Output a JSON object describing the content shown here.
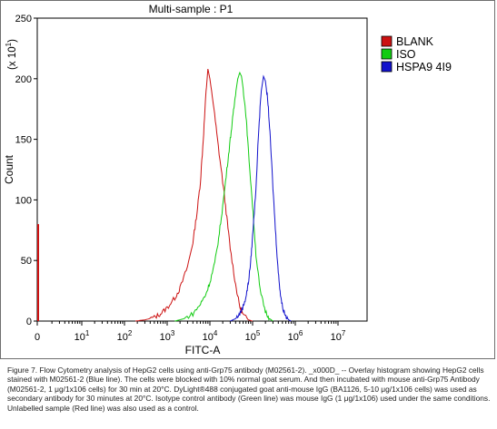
{
  "chart_data": {
    "type": "line",
    "title": "Multi-sample : P1",
    "xlabel": "FITC-A",
    "ylabel": "Count",
    "y_multiplier_label": "(x 10",
    "y_multiplier_exp": "1",
    "x_scale": "log",
    "xlim": [
      0,
      10000000
    ],
    "ylim": [
      0,
      250
    ],
    "x_ticks": [
      {
        "label": "0",
        "exp": ""
      },
      {
        "label": "10",
        "exp": "1"
      },
      {
        "label": "10",
        "exp": "2"
      },
      {
        "label": "10",
        "exp": "3"
      },
      {
        "label": "10",
        "exp": "4"
      },
      {
        "label": "10",
        "exp": "5"
      },
      {
        "label": "10",
        "exp": "6"
      },
      {
        "label": "10",
        "exp": "7"
      }
    ],
    "y_ticks": [
      "0",
      "50",
      "100",
      "150",
      "200",
      "250"
    ],
    "legend_position": "top-right",
    "series": [
      {
        "name": "BLANK",
        "color": "#cc1111",
        "peak_x": 9000,
        "peak_y": 208,
        "points": [
          [
            180,
            0
          ],
          [
            300,
            1
          ],
          [
            500,
            3
          ],
          [
            700,
            6
          ],
          [
            1000,
            11
          ],
          [
            1500,
            19
          ],
          [
            2000,
            27
          ],
          [
            3000,
            45
          ],
          [
            4000,
            65
          ],
          [
            5000,
            90
          ],
          [
            6000,
            115
          ],
          [
            7000,
            150
          ],
          [
            8000,
            185
          ],
          [
            9000,
            208
          ],
          [
            10000,
            200
          ],
          [
            12000,
            180
          ],
          [
            15000,
            150
          ],
          [
            20000,
            115
          ],
          [
            25000,
            85
          ],
          [
            30000,
            60
          ],
          [
            40000,
            30
          ],
          [
            50000,
            12
          ],
          [
            60000,
            5
          ],
          [
            80000,
            1
          ],
          [
            100000,
            0
          ]
        ]
      },
      {
        "name": "ISO",
        "color": "#11cc11",
        "peak_x": 50000,
        "peak_y": 205,
        "points": [
          [
            1500,
            0
          ],
          [
            2500,
            2
          ],
          [
            4000,
            6
          ],
          [
            6000,
            14
          ],
          [
            8000,
            22
          ],
          [
            10000,
            32
          ],
          [
            13000,
            48
          ],
          [
            16000,
            68
          ],
          [
            20000,
            95
          ],
          [
            25000,
            125
          ],
          [
            30000,
            150
          ],
          [
            35000,
            170
          ],
          [
            40000,
            188
          ],
          [
            45000,
            200
          ],
          [
            50000,
            205
          ],
          [
            55000,
            202
          ],
          [
            60000,
            192
          ],
          [
            70000,
            170
          ],
          [
            80000,
            140
          ],
          [
            100000,
            95
          ],
          [
            120000,
            55
          ],
          [
            150000,
            25
          ],
          [
            200000,
            8
          ],
          [
            250000,
            2
          ],
          [
            300000,
            0
          ]
        ]
      },
      {
        "name": "HSPA9 4I9",
        "color": "#1111cc",
        "peak_x": 180000,
        "peak_y": 202,
        "points": [
          [
            30000,
            0
          ],
          [
            40000,
            2
          ],
          [
            50000,
            6
          ],
          [
            60000,
            12
          ],
          [
            70000,
            20
          ],
          [
            80000,
            32
          ],
          [
            90000,
            48
          ],
          [
            100000,
            70
          ],
          [
            120000,
            110
          ],
          [
            140000,
            160
          ],
          [
            160000,
            190
          ],
          [
            180000,
            202
          ],
          [
            200000,
            198
          ],
          [
            230000,
            180
          ],
          [
            260000,
            150
          ],
          [
            300000,
            110
          ],
          [
            350000,
            70
          ],
          [
            400000,
            40
          ],
          [
            450000,
            22
          ],
          [
            500000,
            12
          ],
          [
            600000,
            4
          ],
          [
            700000,
            1
          ],
          [
            800000,
            0
          ]
        ]
      }
    ],
    "zero_bin_spike": {
      "color": "#cc1111",
      "x": 0,
      "y": 80
    }
  },
  "caption": "Figure 7. Flow Cytometry analysis of HepG2 cells using anti-Grp75 antibody (M02561-2). _x000D_ -- Overlay histogram showing HepG2 cells stained with M02561-2 (Blue line). The cells were blocked with 10% normal goat serum. And then incubated with mouse anti-Grp75 Antibody (M02561-2, 1 μg/1x106 cells) for 30 min at 20°C. DyLight®488 conjugated goat anti-mouse IgG (BA1126, 5-10 μg/1x106 cells) was used as secondary antibody for 30 minutes at 20°C. Isotype control antibody (Green line) was mouse IgG (1 μg/1x106) used under the same conditions. Unlabelled sample (Red line) was also used as a control."
}
